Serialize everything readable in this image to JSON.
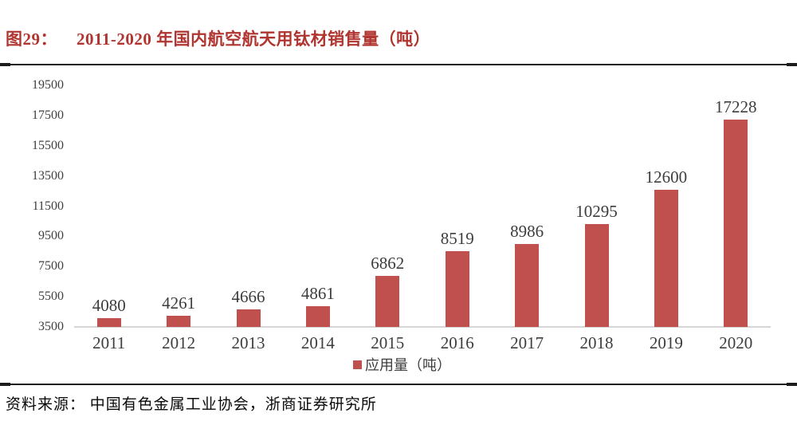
{
  "figure": {
    "label": "图29：",
    "title": "2011-2020 年国内航空航天用钛材销售量（吨）",
    "title_color": "#b0342f"
  },
  "chart_data": {
    "type": "bar",
    "categories": [
      "2011",
      "2012",
      "2013",
      "2014",
      "2015",
      "2016",
      "2017",
      "2018",
      "2019",
      "2020"
    ],
    "values": [
      4080,
      4261,
      4666,
      4861,
      6862,
      8519,
      8986,
      10295,
      12600,
      17228
    ],
    "series": [
      {
        "name": "应用量（吨）",
        "values": [
          4080,
          4261,
          4666,
          4861,
          6862,
          8519,
          8986,
          10295,
          12600,
          17228
        ]
      }
    ],
    "title": "2011-2020 年国内航空航天用钛材销售量（吨）",
    "xlabel": "",
    "ylabel": "",
    "ylim": [
      3500,
      19500
    ],
    "yticks": [
      3500,
      5500,
      7500,
      9500,
      11500,
      13500,
      15500,
      17500,
      19500
    ],
    "grid": false,
    "data_labels": true,
    "legend_position": "bottom",
    "bar_color": "#c0504d"
  },
  "legend": {
    "label": "应用量（吨）",
    "swatch_color": "#c0504d"
  },
  "source": {
    "text": "资料来源： 中国有色金属工业协会，浙商证券研究所"
  },
  "colors": {
    "bar": "#c0504d",
    "axis_text": "#404040",
    "baseline": "#d6d6d6",
    "rule": "#1c1c1c"
  }
}
